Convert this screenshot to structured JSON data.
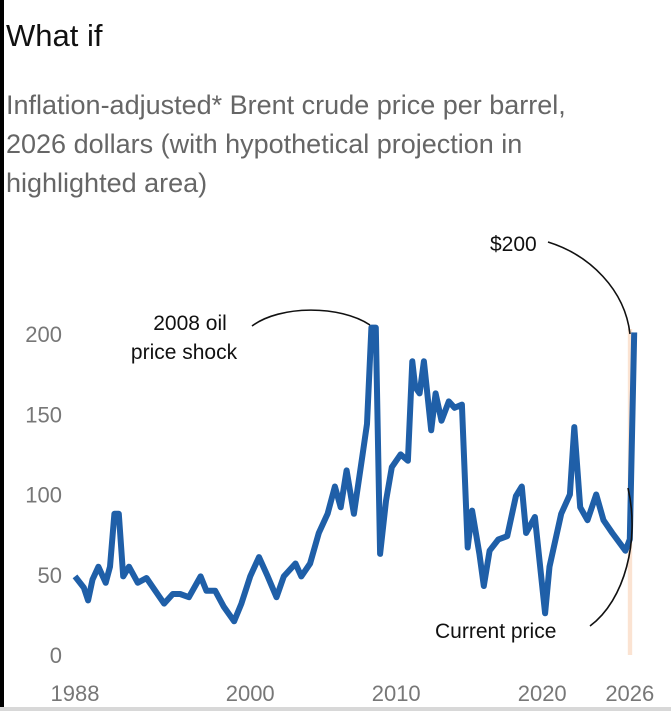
{
  "title": "What if",
  "subtitle": "Inflation-adjusted* Brent crude price per barrel, 2026 dollars (with hypothetical projection in highlighted area)",
  "chart_data": {
    "type": "line",
    "title": "What if",
    "subtitle": "Inflation-adjusted* Brent crude price per barrel, 2026 dollars (with hypothetical projection in highlighted area)",
    "xlabel": "",
    "ylabel": "",
    "xlim": [
      1988,
      2026.3
    ],
    "ylim": [
      0,
      200
    ],
    "grid": false,
    "x_ticks": [
      "1988",
      "2000",
      "2010",
      "2020",
      "2026"
    ],
    "y_ticks": [
      "0",
      "50",
      "100",
      "150",
      "200"
    ],
    "line_color": "#1f5fa8",
    "highlight_color": "#fbe3d2",
    "highlight_range": [
      2026.0,
      2026.3
    ],
    "series": [
      {
        "x": [
          1988.0,
          1988.6,
          1988.9,
          1989.2,
          1989.6,
          1990.1,
          1990.4,
          1990.7,
          1991.0,
          1991.3,
          1991.7,
          1992.3,
          1992.9,
          1993.5,
          1994.1,
          1994.7,
          1995.2,
          1995.8,
          1996.6,
          1997.0,
          1997.6,
          1998.2,
          1998.9,
          1999.4,
          2000.0,
          2000.6,
          2001.2,
          2001.8,
          2002.3,
          2003.1,
          2003.5,
          2004.1,
          2004.7,
          2005.3,
          2005.8,
          2006.2,
          2006.6,
          2007.1,
          2007.7,
          2008.0,
          2008.3,
          2008.6,
          2008.9,
          2009.3,
          2009.7,
          2010.3,
          2010.8,
          2011.1,
          2011.3,
          2011.6,
          2011.9,
          2012.4,
          2012.7,
          2013.1,
          2013.6,
          2014.0,
          2014.5,
          2014.9,
          2015.2,
          2015.7,
          2016.0,
          2016.4,
          2017.0,
          2017.6,
          2018.2,
          2018.6,
          2018.9,
          2019.5,
          2020.2,
          2020.5,
          2021.3,
          2021.9,
          2022.2,
          2022.6,
          2023.1,
          2023.7,
          2024.2,
          2024.8,
          2025.7,
          2026.0,
          2026.3
        ],
        "values": [
          49,
          42,
          34,
          47,
          55,
          45,
          55,
          88,
          88,
          49,
          55,
          45,
          48,
          40,
          32,
          38,
          38,
          36,
          49,
          40,
          40,
          30,
          21,
          32,
          49,
          61,
          49,
          36,
          49,
          57,
          49,
          57,
          76,
          88,
          105,
          92,
          115,
          88,
          125,
          144,
          204,
          204,
          63,
          96,
          117,
          125,
          121,
          183,
          167,
          163,
          183,
          140,
          163,
          146,
          158,
          154,
          156,
          67,
          90,
          63,
          43,
          65,
          72,
          74,
          99,
          105,
          76,
          86,
          26,
          55,
          88,
          100,
          142,
          92,
          84,
          100,
          84,
          76,
          65,
          72,
          201
        ]
      }
    ],
    "annotations": [
      {
        "text": "2008 oil price shock",
        "lines": [
          "2008 oil",
          "price shock"
        ],
        "x": 2008.3,
        "y": 204
      },
      {
        "text": "$200",
        "x": 2026.3,
        "y": 200
      },
      {
        "text": "Current price",
        "x": 2026.0,
        "y": 72
      }
    ]
  }
}
